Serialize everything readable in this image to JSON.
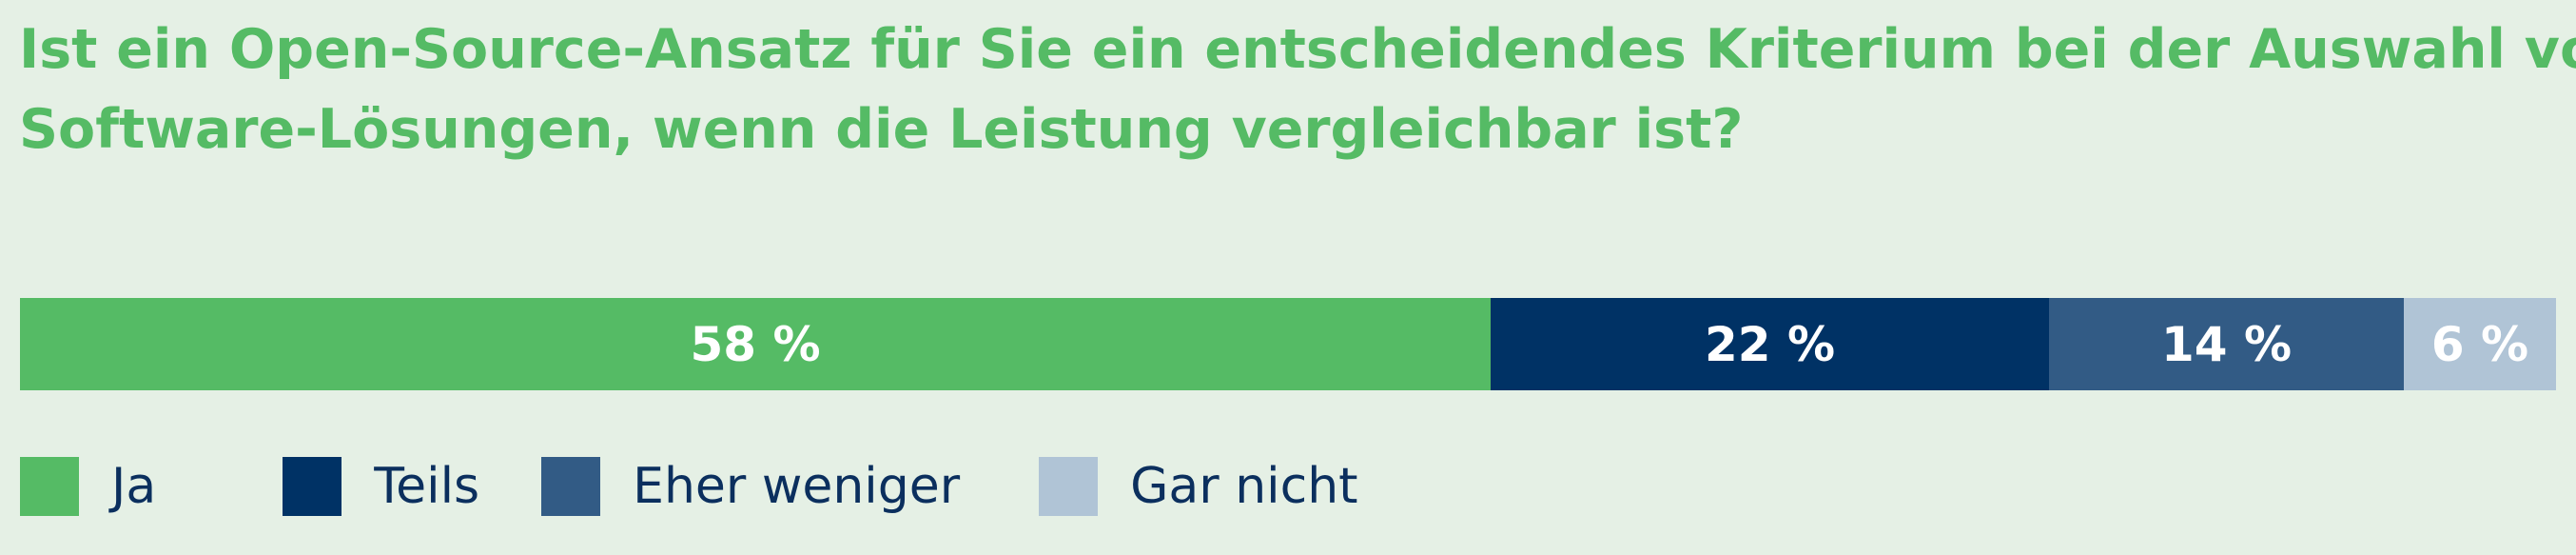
{
  "title_lines": [
    "Ist ein Open-Source-Ansatz für Sie ein entscheidendes Kriterium bei der Auswahl von",
    "Software-Lösungen, wenn die Leistung vergleichbar ist?"
  ],
  "colors": {
    "background": "#e5f0e5",
    "title": "#55bb65",
    "legend_text": "#0b2f5e",
    "value_text": "#ffffff"
  },
  "chart_data": {
    "type": "bar",
    "orientation": "horizontal-stacked",
    "title": "Ist ein Open-Source-Ansatz für Sie ein entscheidendes Kriterium bei der Auswahl von Software-Lösungen, wenn die Leistung vergleichbar ist?",
    "unit": "%",
    "legend_position": "bottom-left",
    "categories": [
      "Ja",
      "Teils",
      "Eher weniger",
      "Gar nicht"
    ],
    "values": [
      58,
      22,
      14,
      6
    ],
    "labels": [
      "58 %",
      "22 %",
      "14 %",
      "6 %"
    ],
    "colors": [
      "#55bb65",
      "#003265",
      "#325b85",
      "#b0c4d6"
    ]
  }
}
